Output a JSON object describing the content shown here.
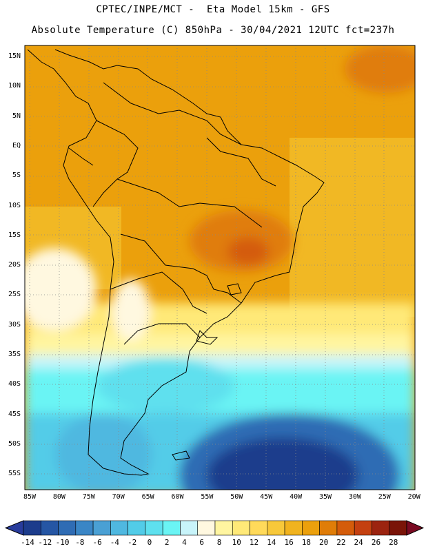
{
  "title_line1": "CPTEC/INPE/MCT -  Eta Model 15km - GFS",
  "title_line2": "Absolute Temperature (C) 850hPa - 30/04/2021 12UTC fct=237h",
  "lat_labels": [
    "15N",
    "10N",
    "5N",
    "EQ",
    "5S",
    "10S",
    "15S",
    "20S",
    "25S",
    "30S",
    "35S",
    "40S",
    "45S",
    "50S",
    "55S"
  ],
  "lon_labels": [
    "85W",
    "80W",
    "75W",
    "70W",
    "65W",
    "60W",
    "55W",
    "50W",
    "45W",
    "40W",
    "35W",
    "30W",
    "25W",
    "20W"
  ],
  "colorbar": {
    "ticks": [
      "-14",
      "-12",
      "-10",
      "-8",
      "-6",
      "-4",
      "-2",
      "0",
      "2",
      "4",
      "6",
      "8",
      "10",
      "12",
      "14",
      "16",
      "18",
      "20",
      "22",
      "24",
      "26",
      "28"
    ],
    "colors": [
      "#1c3c8c",
      "#2556a4",
      "#2f6cb4",
      "#3a86c6",
      "#4aa0d4",
      "#4fb8e0",
      "#52cce8",
      "#5ee0ee",
      "#6af4f4",
      "#c8f4fa",
      "#fff8e0",
      "#fff5a0",
      "#ffe978",
      "#ffda5a",
      "#f7c83a",
      "#f1b31e",
      "#eba00c",
      "#e07d08",
      "#d45c0a",
      "#c44010",
      "#9c2410",
      "#7a1408"
    ],
    "low_color": "#283c9c",
    "high_color": "#7a0a22"
  },
  "colors": {
    "warm": "#efab14",
    "hot": "#e07d08",
    "ocean_mid": "#f1b824",
    "cool": "#fff5a0",
    "cold": "#5ee0ee",
    "deep": "#1c3c8c"
  }
}
